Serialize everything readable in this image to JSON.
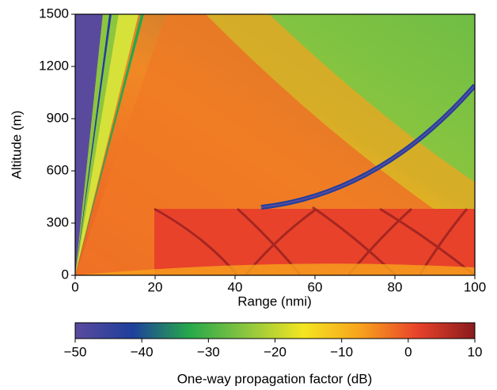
{
  "chart_data": {
    "type": "heatmap",
    "xlabel": "Range (nmi)",
    "ylabel": "Altitude (m)",
    "xlim": [
      0,
      100
    ],
    "ylim": [
      0,
      1500
    ],
    "xticks": [
      0,
      20,
      40,
      60,
      80,
      100
    ],
    "yticks": [
      0,
      300,
      600,
      900,
      1200,
      1500
    ],
    "colorbar": {
      "label": "One-way propagation factor (dB)",
      "lim": [
        -50,
        10
      ],
      "ticks": [
        {
          "value": -50,
          "label": "−50"
        },
        {
          "value": -40,
          "label": "−40"
        },
        {
          "value": -30,
          "label": "−30"
        },
        {
          "value": -20,
          "label": "−20"
        },
        {
          "value": -10,
          "label": "−10"
        },
        0,
        10
      ],
      "colors": [
        "#5a4a9e",
        "#1f3f9c",
        "#26a84b",
        "#8cc63f",
        "#f4e521",
        "#f7a21c",
        "#e8422b",
        "#8a1b1d"
      ]
    }
  }
}
